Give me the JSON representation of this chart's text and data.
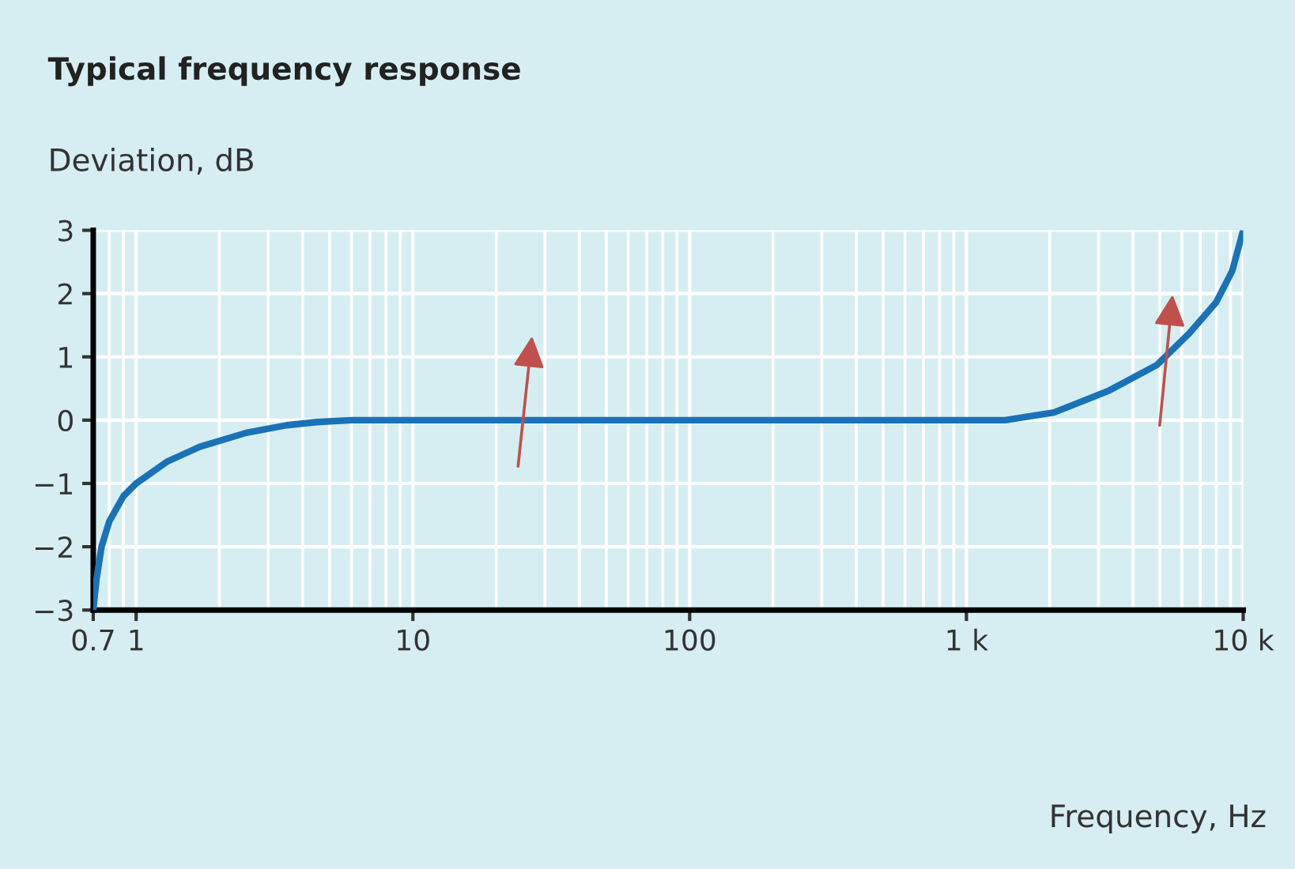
{
  "chart_data": {
    "type": "line",
    "title": "Typical frequency response",
    "ylabel": "Deviation, dB",
    "annotations": [
      "Frequency, Hz"
    ],
    "log": "x",
    "grid": true,
    "marker": "none",
    "line_style": "solid",
    "series": [
      {
        "color": "#1a72b8",
        "x": [
          0.7,
          0.72,
          0.75,
          0.8,
          0.9,
          1,
          1.3,
          1.7,
          2.5,
          3.5,
          4.5,
          6,
          1300,
          1380,
          2070,
          3250,
          4870,
          6380,
          7980,
          9130,
          10000
        ],
        "values": [
          -3,
          -2.5,
          -2.0,
          -1.6,
          -1.2,
          -1.0,
          -0.65,
          -0.42,
          -0.2,
          -0.08,
          -0.03,
          0,
          0,
          0,
          0.12,
          0.46,
          0.87,
          1.37,
          1.86,
          2.36,
          3
        ]
      }
    ],
    "xlim": [
      0.7,
      10000
    ],
    "ylim": [
      -3,
      3
    ],
    "xticks": [
      0.7,
      1,
      10,
      100,
      {
        "value": 1000,
        "label": "1 k"
      },
      {
        "value": 10000,
        "label": "10 k"
      }
    ],
    "yticks": [
      {
        "value": -3,
        "label": "−3"
      },
      {
        "value": -2,
        "label": "−2"
      },
      {
        "value": -1,
        "label": "−1"
      },
      0,
      1,
      2,
      3
    ]
  }
}
